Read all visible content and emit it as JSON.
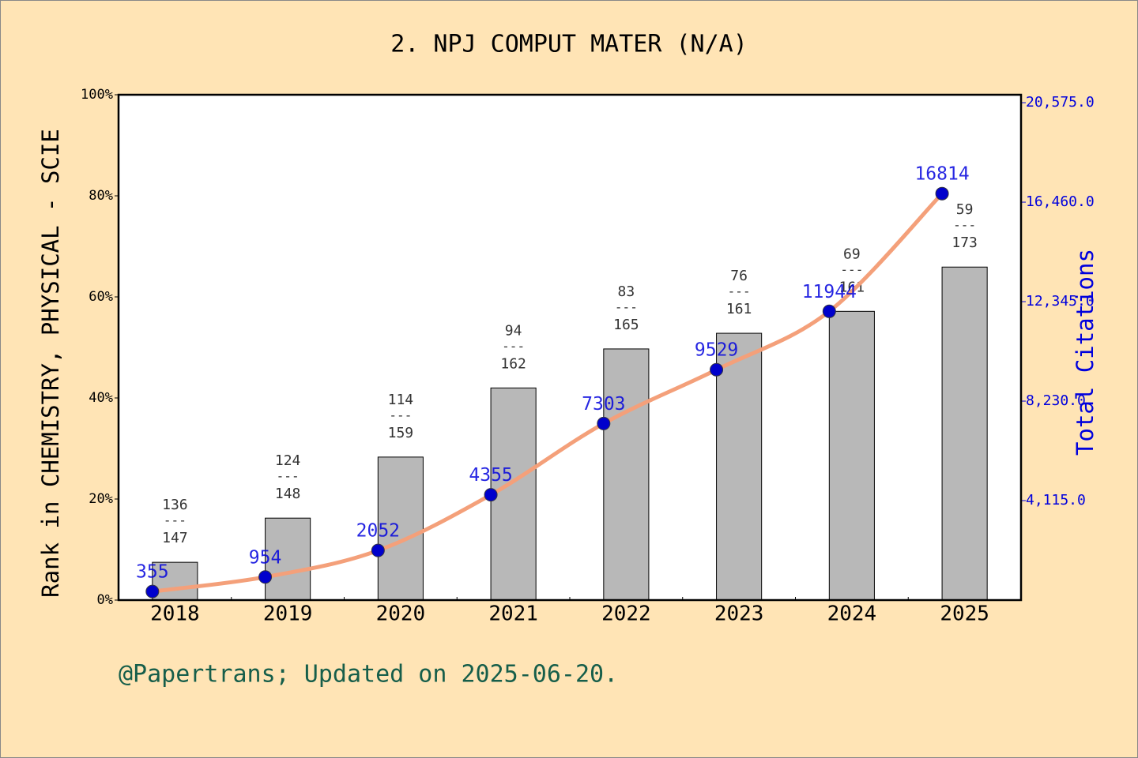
{
  "chart_data": {
    "type": "bar",
    "title": "2. NPJ COMPUT MATER (N/A)",
    "ylabel": "Rank in CHEMISTRY, PHYSICAL - SCIE",
    "y2label": "Total Citations",
    "annotation": "@Papertrans; Updated on 2025-06-20.",
    "categories": [
      "2018",
      "2019",
      "2020",
      "2021",
      "2022",
      "2023",
      "2024",
      "2025"
    ],
    "rank_separator": "---",
    "series": [
      {
        "type": "bar",
        "color": "#b8b8b8",
        "values": [
          7.48,
          16.22,
          28.3,
          41.98,
          49.7,
          52.8,
          57.14,
          65.9
        ],
        "ranks": [
          136,
          124,
          114,
          94,
          83,
          76,
          69,
          59
        ],
        "totals": [
          147,
          148,
          159,
          162,
          165,
          161,
          161,
          173
        ]
      },
      {
        "type": "line",
        "axis": "y2",
        "color": "#f4a07a",
        "marker_color": "#0000cc",
        "label_color": "#0000dd",
        "values": [
          355,
          954,
          2052,
          4355,
          7303,
          9529,
          11944,
          16814
        ]
      }
    ],
    "ylim": [
      0,
      100
    ],
    "yticks": [
      {
        "value": 0,
        "label": "0%"
      },
      {
        "value": 20,
        "label": "20%"
      },
      {
        "value": 40,
        "label": "40%"
      },
      {
        "value": 60,
        "label": "60%"
      },
      {
        "value": 80,
        "label": "80%"
      },
      {
        "value": 100,
        "label": "100%"
      }
    ],
    "y2lim": [
      0,
      20903
    ],
    "y2ticks": [
      {
        "value": 4115,
        "label": "4,115.0"
      },
      {
        "value": 8230,
        "label": "8,230.0"
      },
      {
        "value": 12345,
        "label": "12,345.0"
      },
      {
        "value": 16460,
        "label": "16,460.0"
      },
      {
        "value": 20575,
        "label": "20,575.0"
      }
    ]
  }
}
